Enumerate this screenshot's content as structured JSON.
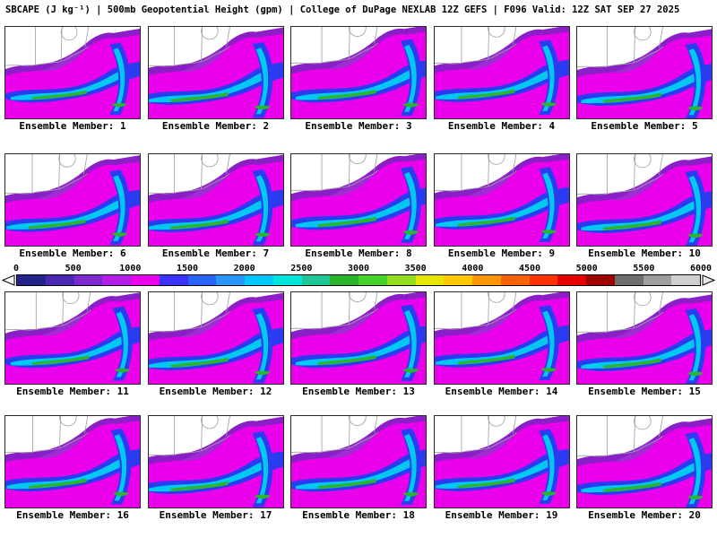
{
  "header": {
    "title": "SBCAPE (J kg⁻¹) | 500mb Geopotential Height (gpm) | College of DuPage NEXLAB 12Z GEFS | F096 Valid: 12Z SAT SEP 27 2025"
  },
  "colorbar": {
    "unit_ticks": [
      "0",
      "500",
      "1000",
      "1500",
      "2000",
      "2500",
      "3000",
      "3500",
      "4000",
      "4500",
      "5000",
      "5500",
      "6000"
    ],
    "segment_colors": [
      "#23238c",
      "#4b28b4",
      "#7e28d2",
      "#b41ee6",
      "#ea00ea",
      "#3c32ff",
      "#2864ff",
      "#2896ff",
      "#00c8ff",
      "#00e6dc",
      "#1ec896",
      "#28b428",
      "#46d228",
      "#96dc1e",
      "#e6e600",
      "#ffc800",
      "#ff9600",
      "#ff6400",
      "#ff3200",
      "#e60000",
      "#a00000",
      "#6e6e6e",
      "#9e9e9e",
      "#cfcfcf"
    ]
  },
  "panels": [
    {
      "label": "Ensemble Member: 1"
    },
    {
      "label": "Ensemble Member: 2"
    },
    {
      "label": "Ensemble Member: 3"
    },
    {
      "label": "Ensemble Member: 4"
    },
    {
      "label": "Ensemble Member: 5"
    },
    {
      "label": "Ensemble Member: 6"
    },
    {
      "label": "Ensemble Member: 7"
    },
    {
      "label": "Ensemble Member: 8"
    },
    {
      "label": "Ensemble Member: 9"
    },
    {
      "label": "Ensemble Member: 10"
    },
    {
      "label": "Ensemble Member: 11"
    },
    {
      "label": "Ensemble Member: 12"
    },
    {
      "label": "Ensemble Member: 13"
    },
    {
      "label": "Ensemble Member: 14"
    },
    {
      "label": "Ensemble Member: 15"
    },
    {
      "label": "Ensemble Member: 16"
    },
    {
      "label": "Ensemble Member: 17"
    },
    {
      "label": "Ensemble Member: 18"
    },
    {
      "label": "Ensemble Member: 19"
    },
    {
      "label": "Ensemble Member: 20"
    }
  ]
}
